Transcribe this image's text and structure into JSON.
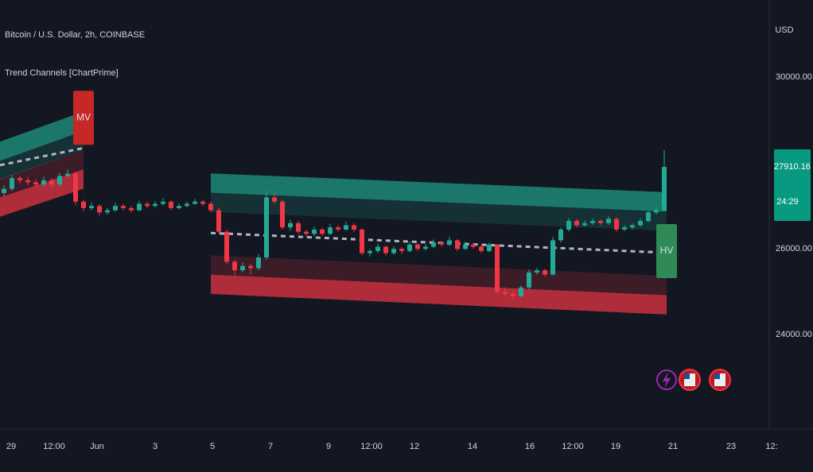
{
  "chart_data": {
    "type": "candlestick",
    "title": "Bitcoin / U.S. Dollar, 2h, COINBASE",
    "indicator": "Trend Channels [ChartPrime]",
    "currency": "USD",
    "countdown": "24:29",
    "up_color": "#22ab94",
    "down_color": "#f23645",
    "ylim": [
      21800,
      31800
    ],
    "yticks": [
      {
        "value": 24000,
        "label": "24000.00"
      },
      {
        "value": 26000,
        "label": "26000.00"
      },
      {
        "value": 30000,
        "label": "30000.00"
      }
    ],
    "xlim": [
      -0.5,
      96
    ],
    "xticks": [
      {
        "value": 0.9,
        "label": "29"
      },
      {
        "value": 6.3,
        "label": "12:00"
      },
      {
        "value": 11.7,
        "label": "Jun"
      },
      {
        "value": 19,
        "label": "3"
      },
      {
        "value": 26.2,
        "label": "5"
      },
      {
        "value": 33.5,
        "label": "7"
      },
      {
        "value": 40.8,
        "label": "9"
      },
      {
        "value": 46.2,
        "label": "12:00"
      },
      {
        "value": 51.6,
        "label": "12"
      },
      {
        "value": 58.9,
        "label": "14"
      },
      {
        "value": 66.1,
        "label": "16"
      },
      {
        "value": 71.5,
        "label": "12:00"
      },
      {
        "value": 76.9,
        "label": "19"
      },
      {
        "value": 84.1,
        "label": "21"
      },
      {
        "value": 91.4,
        "label": "23"
      },
      {
        "value": 96.5,
        "label": "12:"
      }
    ],
    "ohlc": [
      [
        27300,
        27480,
        27220,
        27400
      ],
      [
        27400,
        27720,
        27350,
        27650
      ],
      [
        27650,
        27700,
        27520,
        27600
      ],
      [
        27600,
        27680,
        27480,
        27550
      ],
      [
        27550,
        27620,
        27420,
        27500
      ],
      [
        27500,
        27680,
        27450,
        27600
      ],
      [
        27600,
        27650,
        27420,
        27500
      ],
      [
        27500,
        27780,
        27460,
        27700
      ],
      [
        27700,
        27850,
        27650,
        27750
      ],
      [
        27750,
        27800,
        27020,
        27100
      ],
      [
        27100,
        27150,
        26880,
        26950
      ],
      [
        26950,
        27080,
        26900,
        27000
      ],
      [
        27000,
        27040,
        26780,
        26850
      ],
      [
        26850,
        26960,
        26800,
        26900
      ],
      [
        26900,
        27070,
        26860,
        27000
      ],
      [
        27000,
        27050,
        26900,
        26950
      ],
      [
        26950,
        27000,
        26850,
        26900
      ],
      [
        26900,
        27120,
        26880,
        27050
      ],
      [
        27050,
        27100,
        26950,
        27000
      ],
      [
        27000,
        27110,
        26960,
        27050
      ],
      [
        27050,
        27180,
        27010,
        27100
      ],
      [
        27100,
        27130,
        26900,
        26950
      ],
      [
        26950,
        27060,
        26920,
        27000
      ],
      [
        27000,
        27100,
        26970,
        27050
      ],
      [
        27050,
        27160,
        27020,
        27100
      ],
      [
        27100,
        27150,
        27000,
        27050
      ],
      [
        27050,
        27100,
        26850,
        26900
      ],
      [
        26900,
        26950,
        26350,
        26400
      ],
      [
        26400,
        26450,
        25650,
        25700
      ],
      [
        25700,
        25750,
        25380,
        25500
      ],
      [
        25500,
        25680,
        25450,
        25600
      ],
      [
        25600,
        25650,
        25400,
        25550
      ],
      [
        25550,
        25880,
        25500,
        25800
      ],
      [
        25800,
        27350,
        25750,
        27200
      ],
      [
        27200,
        27280,
        27050,
        27100
      ],
      [
        27100,
        27150,
        26450,
        26500
      ],
      [
        26500,
        26680,
        26420,
        26600
      ],
      [
        26600,
        26650,
        26350,
        26400
      ],
      [
        26400,
        26450,
        26280,
        26350
      ],
      [
        26350,
        26520,
        26300,
        26450
      ],
      [
        26450,
        26500,
        26300,
        26350
      ],
      [
        26350,
        26580,
        26320,
        26500
      ],
      [
        26500,
        26560,
        26400,
        26450
      ],
      [
        26450,
        26640,
        26420,
        26550
      ],
      [
        26550,
        26600,
        26400,
        26450
      ],
      [
        26450,
        26480,
        25850,
        25900
      ],
      [
        25900,
        26000,
        25820,
        25950
      ],
      [
        25950,
        26120,
        25900,
        26050
      ],
      [
        26050,
        26080,
        25850,
        25900
      ],
      [
        25900,
        26060,
        25860,
        26000
      ],
      [
        26000,
        26040,
        25880,
        25950
      ],
      [
        25950,
        26160,
        25920,
        26100
      ],
      [
        26100,
        26130,
        25950,
        26000
      ],
      [
        26000,
        26110,
        25960,
        26050
      ],
      [
        26050,
        26220,
        26020,
        26150
      ],
      [
        26150,
        26180,
        26050,
        26100
      ],
      [
        26100,
        26280,
        26060,
        26200
      ],
      [
        26200,
        26230,
        25950,
        26000
      ],
      [
        26000,
        26160,
        25970,
        26100
      ],
      [
        26100,
        26140,
        26000,
        26050
      ],
      [
        26050,
        26090,
        25900,
        25950
      ],
      [
        25950,
        26150,
        25920,
        26100
      ],
      [
        26100,
        26120,
        24950,
        25000
      ],
      [
        25000,
        25100,
        24880,
        24950
      ],
      [
        24950,
        25000,
        24820,
        24900
      ],
      [
        24900,
        25150,
        24870,
        25100
      ],
      [
        25100,
        25520,
        25060,
        25450
      ],
      [
        25450,
        25560,
        25400,
        25500
      ],
      [
        25500,
        25540,
        25350,
        25400
      ],
      [
        25400,
        26280,
        25380,
        26200
      ],
      [
        26200,
        26500,
        26150,
        26450
      ],
      [
        26450,
        26720,
        26400,
        26650
      ],
      [
        26650,
        26700,
        26500,
        26550
      ],
      [
        26550,
        26660,
        26520,
        26600
      ],
      [
        26600,
        26710,
        26560,
        26650
      ],
      [
        26650,
        26690,
        26550,
        26600
      ],
      [
        26600,
        26760,
        26560,
        26700
      ],
      [
        26700,
        26730,
        26400,
        26450
      ],
      [
        26450,
        26560,
        26420,
        26500
      ],
      [
        26500,
        26600,
        26460,
        26550
      ],
      [
        26550,
        26710,
        26520,
        26650
      ],
      [
        26650,
        26900,
        26620,
        26850
      ],
      [
        26850,
        26980,
        26800,
        26900
      ],
      [
        26900,
        28300,
        26880,
        27910.16
      ]
    ],
    "channel_band": 450,
    "channels": [
      {
        "start": -0.5,
        "end": 10,
        "upper": [
          28500,
          29200
        ],
        "mid": [
          27950,
          28350
        ],
        "lower": [
          26750,
          27400
        ],
        "label": "MV",
        "label_color": "#c62828"
      },
      {
        "start": 26,
        "end": 83.3,
        "upper": [
          27760,
          27320
        ],
        "mid": [
          26370,
          25910
        ],
        "lower": [
          24950,
          24470
        ],
        "label": "HV",
        "label_color": "#2e8b57"
      }
    ]
  }
}
